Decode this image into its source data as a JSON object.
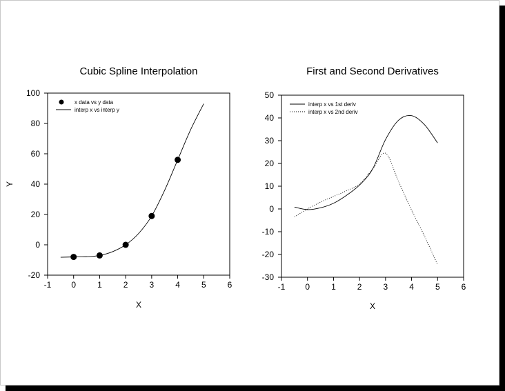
{
  "chart_data": [
    {
      "type": "line",
      "title": "Cubic Spline Interpolation",
      "xlabel": "X",
      "ylabel": "Y",
      "xlim": [
        -1,
        6
      ],
      "ylim": [
        -20,
        100
      ],
      "xticks": [
        "-1",
        "0",
        "1",
        "2",
        "3",
        "4",
        "5",
        "6"
      ],
      "yticks": [
        "-20",
        "0",
        "20",
        "40",
        "60",
        "80",
        "100"
      ],
      "legend_position": "top-left",
      "series": [
        {
          "name": "x data vs y data",
          "style": "markers",
          "x": [
            0,
            1,
            2,
            3,
            4
          ],
          "y": [
            -8,
            -7,
            0,
            19,
            56
          ]
        },
        {
          "name": "interp x vs interp y",
          "style": "solid",
          "x": [
            -0.5,
            0,
            0.5,
            1,
            1.5,
            2,
            2.5,
            3,
            3.5,
            4,
            4.5,
            5
          ],
          "y": [
            -8.2,
            -8,
            -7.9,
            -7,
            -4.5,
            0,
            7.5,
            19,
            36,
            56,
            76,
            93
          ]
        }
      ]
    },
    {
      "type": "line",
      "title": "First and Second Derivatives",
      "xlabel": "X",
      "ylabel": "",
      "xlim": [
        -1,
        6
      ],
      "ylim": [
        -30,
        50
      ],
      "xticks": [
        "-1",
        "0",
        "1",
        "2",
        "3",
        "4",
        "5",
        "6"
      ],
      "yticks": [
        "-30",
        "-20",
        "-10",
        "0",
        "10",
        "20",
        "30",
        "40",
        "50"
      ],
      "legend_position": "top-left",
      "series": [
        {
          "name": "interp x vs 1st deriv",
          "style": "solid",
          "x": [
            -0.5,
            0,
            0.5,
            1,
            1.5,
            2,
            2.5,
            3,
            3.5,
            4,
            4.5,
            5
          ],
          "y": [
            0.8,
            -0.3,
            0.5,
            2.5,
            6,
            10.5,
            17.5,
            30.5,
            39,
            41,
            37,
            29
          ]
        },
        {
          "name": "interp x vs 2nd deriv",
          "style": "dotted",
          "x": [
            -0.5,
            0,
            0.5,
            1,
            1.5,
            2,
            2.5,
            3,
            3.5,
            4,
            4.5,
            5
          ],
          "y": [
            -3.5,
            0,
            3,
            5.5,
            8,
            11,
            17.5,
            24.5,
            12,
            -0.5,
            -12,
            -24.5
          ]
        }
      ]
    }
  ]
}
